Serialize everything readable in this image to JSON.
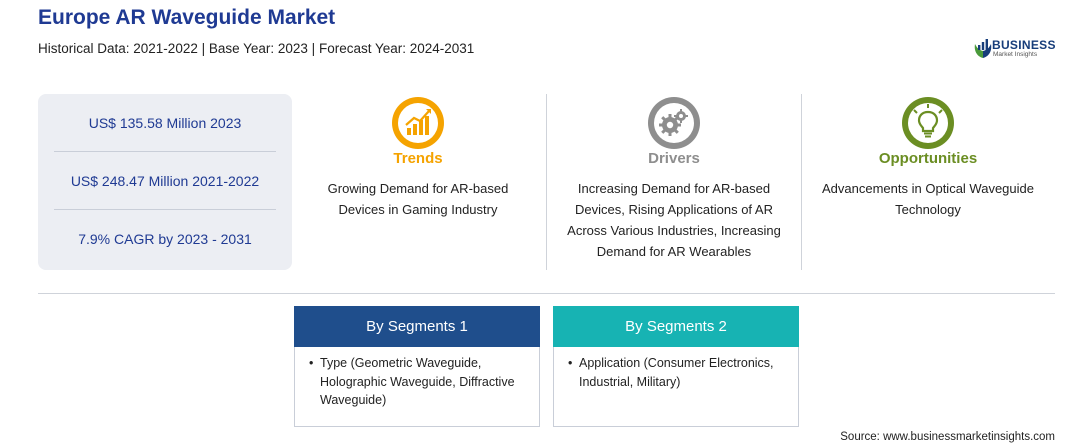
{
  "header": {
    "title": "Europe AR Waveguide Market",
    "subtitle": "Historical Data: 2021-2022 | Base Year: 2023 | Forecast Year: 2024-2031"
  },
  "logo": {
    "word": "BUSINESS",
    "sub": "Market Insights"
  },
  "stats": [
    "US$ 135.58 Million 2023",
    "US$ 248.47 Million 2021-2022",
    "7.9% CAGR by 2023 - 2031"
  ],
  "features": [
    {
      "icon": "trend-chart-icon",
      "heading": "Trends",
      "color": "#f5a300",
      "body": "Growing Demand for AR-based Devices in Gaming Industry"
    },
    {
      "icon": "gears-icon",
      "heading": "Drivers",
      "color": "#8e8e8e",
      "body": "Increasing Demand for AR-based Devices, Rising Applications of AR Across Various Industries, Increasing Demand for AR Wearables"
    },
    {
      "icon": "lightbulb-icon",
      "heading": "Opportunities",
      "color": "#6b8e23",
      "body": "Advancements in Optical Waveguide Technology"
    }
  ],
  "segments": [
    {
      "title": "By Segments 1",
      "color": "#1f4e8c",
      "bullet": "•",
      "item": "Type (Geometric Waveguide, Holographic Waveguide, Diffractive Waveguide)"
    },
    {
      "title": "By Segments 2",
      "color": "#17b3b3",
      "bullet": "•",
      "item": "Application (Consumer Electronics, Industrial, Military)"
    }
  ],
  "source": "Source: www.businessmarketinsights.com"
}
